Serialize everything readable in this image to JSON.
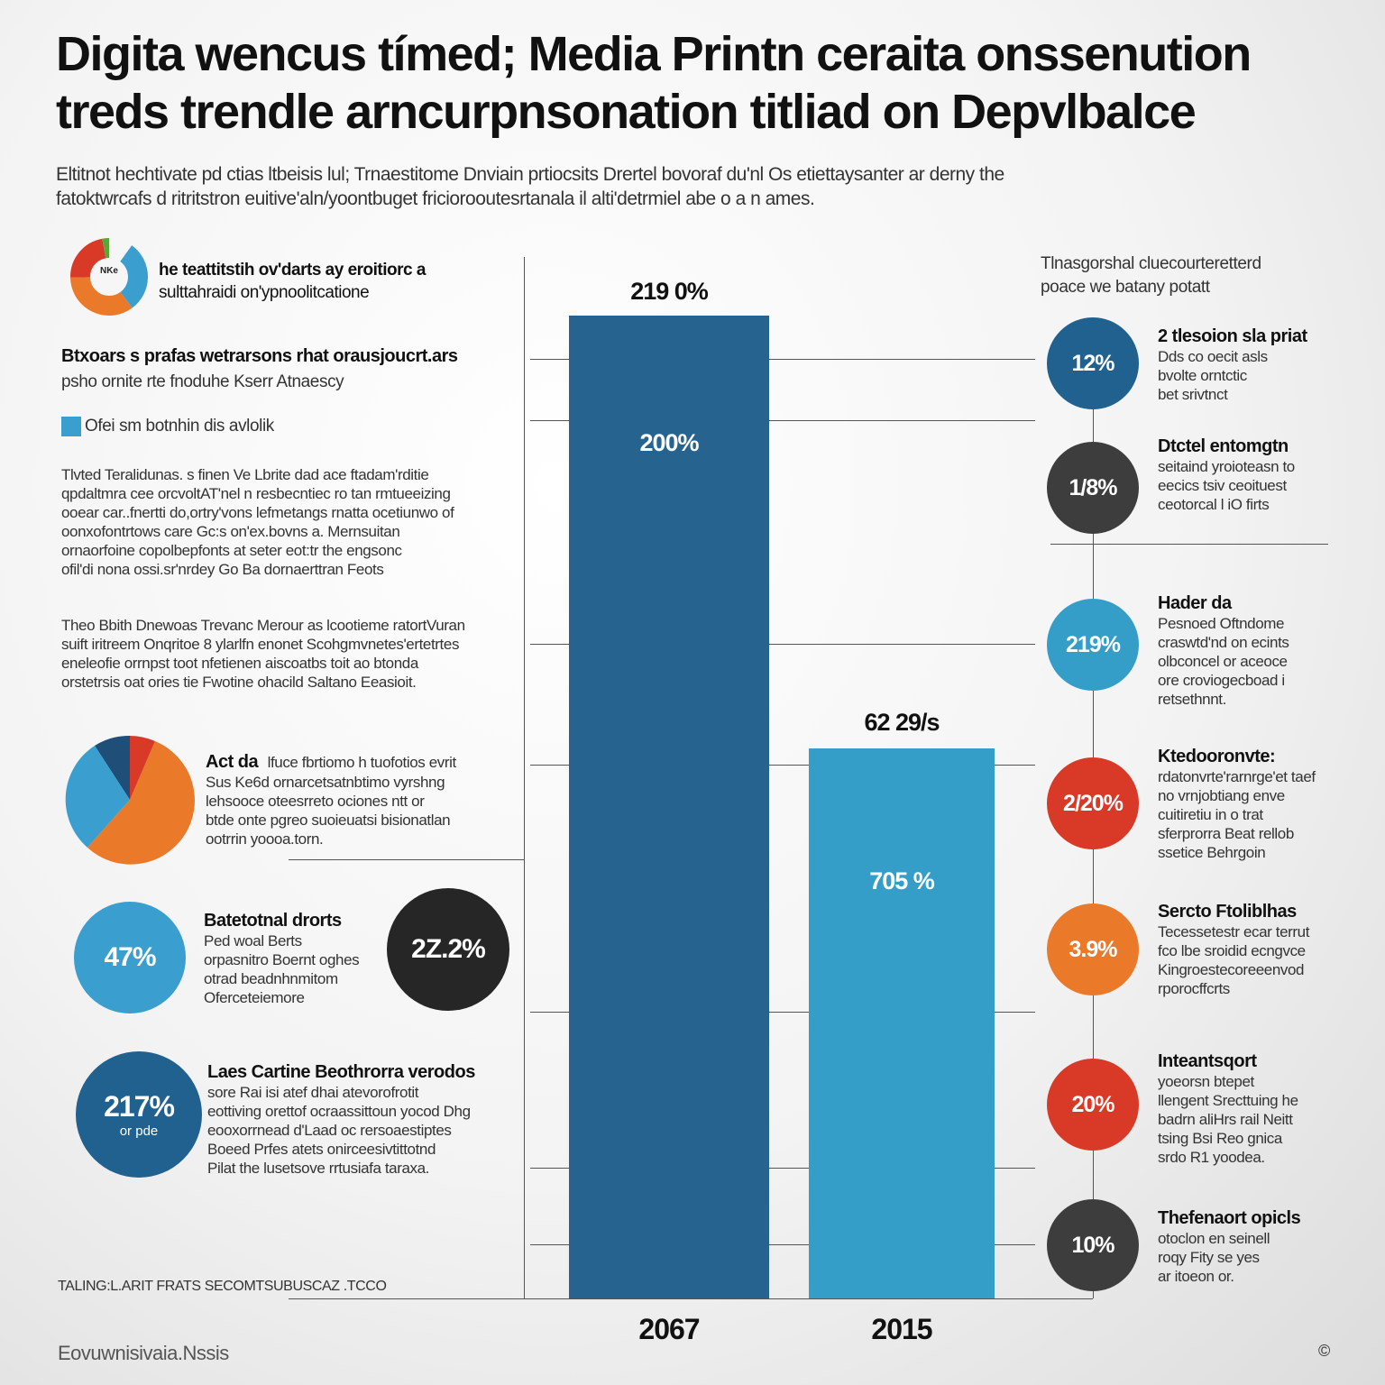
{
  "header": {
    "title": "Digita wencus tímed; Media Printn ceraita onssenution treds trendle arncurpnsonation titliad on Depvlbalce",
    "subtitle": "Eltitnot hechtivate pd ctias ltbeisis lul; Trnaestitome Dnviain prtiocsits Drertel bovoraf du'nl Os etiettaysanter ar derny the fatoktwrcafs d ritritstron euitive'aln/yoontbuget friciorooutesrtanala il alti'detrmiel abe o a n ames."
  },
  "left_panel": {
    "donut_label": "NKe",
    "donut_caption_1": "he teattitstih ov'darts ay eroitiorc a",
    "donut_caption_2": "sulttahraidi on'ypnoolitcatione",
    "block1_title": "Btxoars s prafas wetrarsons rhat orausjoucrt.ars",
    "block1_text": "psho ornite rte fnoduhe Kserr Atnaescy",
    "legend_label": "Ofei sm botnhin dis avlolik",
    "para1": [
      "Tlvted Teralidunas. s finen Ve Lbrite dad ace ftadam'rditie",
      "qpdaltmra cee orcvoltAT'nel n resbecntiec ro tan rmtueeizing",
      "ooear car..fnertti do,ortry'vons lefmetangs rnatta ocetiunwo of",
      "oonxofontrtows care Gc:s on'ex.bovns a. Mernsuitan",
      "ornaorfoine copolbepfonts at seter eot:tr the engsonc",
      "ofil'di nona ossi.sr'nrdey Go Ba dornaerttran Feots"
    ],
    "para2": [
      "Theo Bbith Dnewoas Trevanc Merour as lcootieme ratortVuran",
      "suift iritreem Onqritoe 8 ylarlfn enonet Scohgmvnetes'ertetrtes",
      "eneleofie orrnpst toot nfetienen aiscoatbs toit ao btonda",
      "orstetrsis oat ories tie Fwotine ohacild Saltano Eeasioit."
    ],
    "pie_title": "Act da",
    "pie_text": [
      "lfuce fbrtiomo h tuofotios evrit",
      "Sus Ke6d ornarcetsatnbtimo vyrshng",
      "lehsooce oteesrreto ociones ntt or",
      "btde onte pgreo suoieuatsi bisionatlan",
      "ootrrin yoooa.torn."
    ],
    "stat1_value": "47%",
    "stat1_title": "Batetotnal drorts",
    "stat1_text": [
      "Ped woal Berts",
      "orpasnitro Boernt oghes",
      "otrad beadnhnmitom",
      "Oferceteiemore"
    ],
    "stat2_value": "2Z.2%",
    "stat3_value": "217%",
    "stat3_sub": "or pde",
    "stat3_title": "Laes Cartine Beothrorra verodos",
    "stat3_text": [
      "sore Rai isi atef dhai atevorofrotit",
      "eottiving orettof ocraassittoun yocod Dhg",
      "eooxorrnead d'Laad oc rersoaestiptes",
      "Boeed Prfes atets onirceesivtittotnd",
      "Pilat the lusetsove rrtusiafa taraxa."
    ],
    "footnote": "TALING:L.ARIT FRATS SECOMTSUBUSCAZ .TCCO"
  },
  "chart_data": {
    "type": "bar",
    "categories": [
      "2067",
      "2015"
    ],
    "top_labels": [
      "219 0%",
      "62 29/s"
    ],
    "inner_labels": [
      "200%",
      "705 %"
    ],
    "colors": [
      "#26638f",
      "#349ec9"
    ]
  },
  "right_panel": {
    "header_1": "Tlnasgorshal cluecourteretterd",
    "header_2": "poace we batany potatt",
    "items": [
      {
        "value": "12%",
        "color": "#20618f",
        "title": "2 tlesoion sla priat",
        "text": [
          "Dds co oecit asls",
          "bvolte orntctic",
          "bet srivtnct"
        ]
      },
      {
        "value": "1/8%",
        "color": "#3d3d3d",
        "title": "Dtctel entomgtn",
        "text": [
          "seitaind yroioteasn to",
          "eecics tsiv ceoituest",
          "ceotorcal l iO firts"
        ]
      },
      {
        "value": "219%",
        "color": "#349ec9",
        "title": "Hader da",
        "text": [
          "Pesnoed Oftndome",
          "craswtd'nd on ecints",
          "olbconcel or aceoce",
          "ore croviogecboad i",
          "retsethnnt."
        ]
      },
      {
        "value": "2/20%",
        "color": "#d93a27",
        "title": "Ktedooronvte:",
        "text": [
          "rdatonvrte'rarnrge'et taef",
          "no vrnjobtiang enve",
          "cuitiretiu in o trat",
          "sferprorra Beat rellob",
          "ssetice Behrgoin"
        ]
      },
      {
        "value": "3.9%",
        "color": "#ea7a2a",
        "title": "Sercto Ftoliblhas",
        "text": [
          "Tecessetestr ecar terrut",
          "fco lbe sroidid ecngvce",
          "Kingroestecoreeenvod",
          "rporocffcrts"
        ]
      },
      {
        "value": "20%",
        "color": "#d93a27",
        "title": "Inteantsqort",
        "text": [
          "yoeorsn btepet",
          "llengent Srecttuing he",
          "badrn aliHrs rail Neitt",
          "tsing Bsi Reo gnica",
          "srdo R1 yoodea."
        ]
      },
      {
        "value": "10%",
        "color": "#3d3d3d",
        "title": "Thefenaort opicls",
        "text": [
          "otoclon en seinell",
          "roqy Fity se yes",
          "ar itoeon or."
        ]
      }
    ]
  },
  "footer": {
    "brand": "Eovuwnisivaia.Nssis",
    "mark": "©"
  }
}
